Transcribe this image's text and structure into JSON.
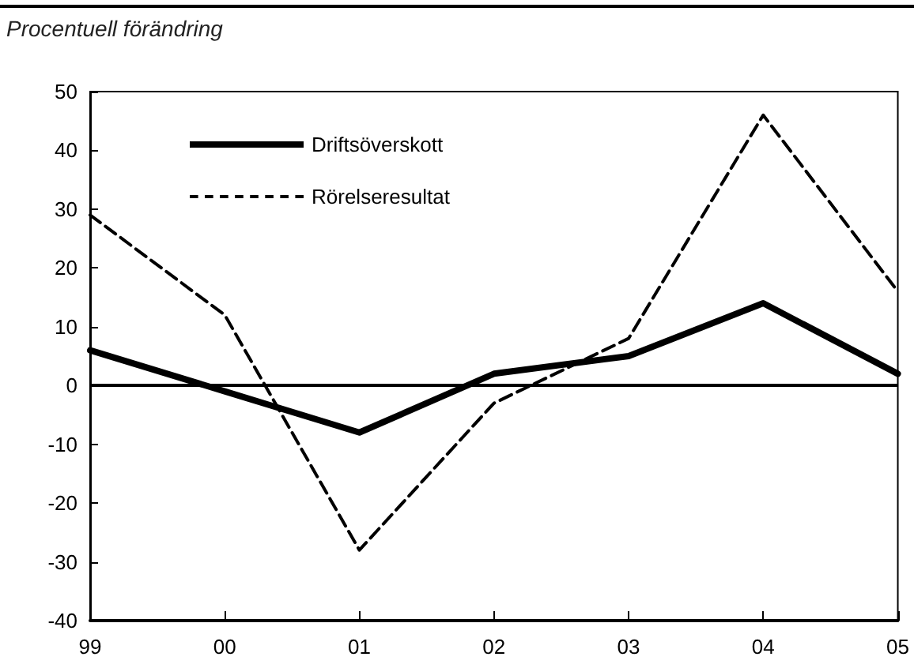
{
  "chart_data": {
    "type": "line",
    "title": "Procentuell förändring",
    "categories": [
      "99",
      "00",
      "01",
      "02",
      "03",
      "04",
      "05"
    ],
    "series": [
      {
        "name": "Driftsöverskott",
        "color": "#000000",
        "line_style": "solid",
        "values": [
          6,
          -1,
          -8,
          2,
          5,
          14,
          2
        ]
      },
      {
        "name": "Rörelseresultat",
        "color": "#000000",
        "line_style": "dashed",
        "values": [
          29,
          12,
          -28,
          -3,
          8,
          46,
          16
        ]
      }
    ],
    "ylim": [
      -40,
      50
    ],
    "yticks": [
      -40,
      -30,
      -20,
      -10,
      0,
      10,
      20,
      30,
      40,
      50
    ],
    "grid": false,
    "legend": "top left",
    "marker": "none",
    "ref_lines": [
      {
        "axis": "y",
        "value": 0,
        "color": "#000000"
      }
    ]
  }
}
